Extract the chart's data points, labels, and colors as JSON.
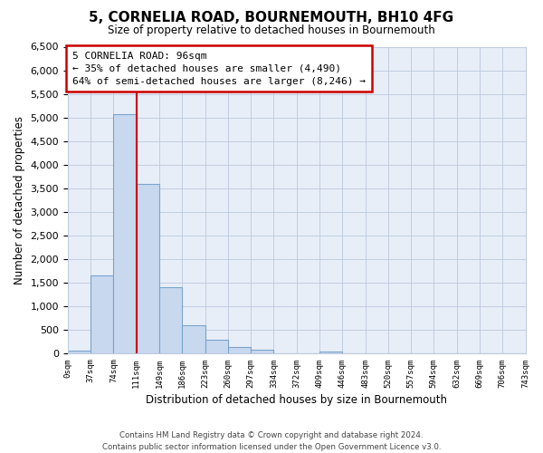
{
  "title": "5, CORNELIA ROAD, BOURNEMOUTH, BH10 4FG",
  "subtitle": "Size of property relative to detached houses in Bournemouth",
  "xlabel": "Distribution of detached houses by size in Bournemouth",
  "ylabel": "Number of detached properties",
  "bin_labels": [
    "0sqm",
    "37sqm",
    "74sqm",
    "111sqm",
    "149sqm",
    "186sqm",
    "223sqm",
    "260sqm",
    "297sqm",
    "334sqm",
    "372sqm",
    "409sqm",
    "446sqm",
    "483sqm",
    "520sqm",
    "557sqm",
    "594sqm",
    "632sqm",
    "669sqm",
    "706sqm",
    "743sqm"
  ],
  "bar_values": [
    60,
    1650,
    5080,
    3590,
    1400,
    610,
    295,
    145,
    85,
    0,
    0,
    50,
    0,
    0,
    0,
    0,
    0,
    0,
    0,
    0
  ],
  "bar_color": "#c8d8ee",
  "bar_edge_color": "#7aa4cc",
  "vline_x_idx": 3,
  "vline_color": "#cc0000",
  "ylim": [
    0,
    6500
  ],
  "yticks": [
    0,
    500,
    1000,
    1500,
    2000,
    2500,
    3000,
    3500,
    4000,
    4500,
    5000,
    5500,
    6000,
    6500
  ],
  "annotation_box_text": "5 CORNELIA ROAD: 96sqm\n← 35% of detached houses are smaller (4,490)\n64% of semi-detached houses are larger (8,246) →",
  "annotation_box_color": "#ffffff",
  "annotation_box_edge_color": "#cc0000",
  "footer_line1": "Contains HM Land Registry data © Crown copyright and database right 2024.",
  "footer_line2": "Contains public sector information licensed under the Open Government Licence v3.0.",
  "plot_bg_color": "#e8eef8",
  "fig_bg_color": "#ffffff",
  "grid_color": "#c0cce0"
}
